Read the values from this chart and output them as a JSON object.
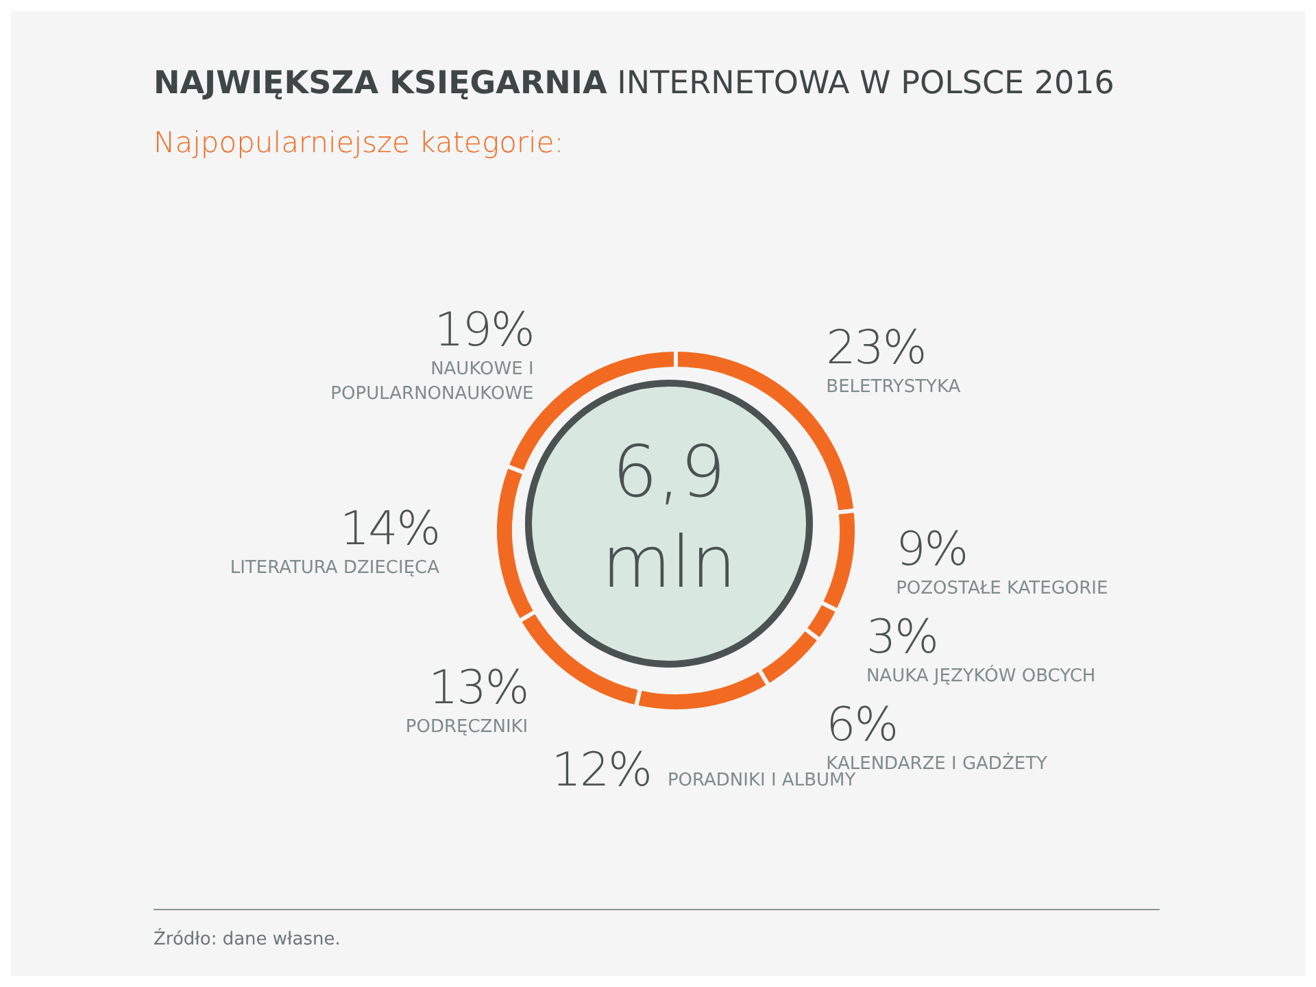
{
  "chart_data": {
    "type": "donut",
    "title": "NAJWIĘKSZA KSIĘGARNIA INTERNETOWA W POLSCE 2016",
    "subtitle": "Najpopularniejsze kategorie:",
    "categories": [
      "BELETRYSTYKA",
      "POZOSTAŁE KATEGORIE",
      "NAUKA JĘZYKÓW OBCYCH",
      "KALENDARZE I GADŻETY",
      "PORADNIKI I ALBUMY",
      "PODRĘCZNIKI",
      "LITERATURA DZIECIĘCA",
      "NAUKOWE I POPULARNONAUKOWE"
    ],
    "values": [
      23,
      9,
      3,
      6,
      12,
      13,
      14,
      19
    ],
    "value_labels": [
      "23%",
      "9%",
      "3%",
      "6%",
      "12%",
      "13%",
      "14%",
      "19%"
    ],
    "colors": [
      "#f26a21",
      "#f26a21",
      "#f26a21",
      "#f26a21",
      "#f26a21",
      "#f26a21",
      "#f26a21",
      "#f26a21"
    ],
    "annotations": [
      "6,9 mln",
      "Źródło: dane własne."
    ]
  }
}
